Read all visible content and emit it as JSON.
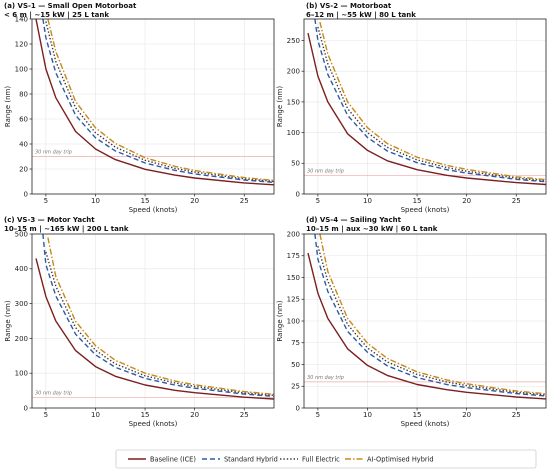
{
  "figure": {
    "legend_placement": "bottom-center",
    "legend_items": [
      {
        "label": "Baseline (ICE)",
        "color": "#7b1f1f",
        "dash": "solid"
      },
      {
        "label": "Standard Hybrid",
        "color": "#2e5aa8",
        "dash": "dashed"
      },
      {
        "label": "Full Electric",
        "color": "#3a3a3a",
        "dash": "dotted"
      },
      {
        "label": "AI-Optimised Hybrid",
        "color": "#c8891a",
        "dash": "dashdot"
      }
    ],
    "reference_color": "#f2a8a8",
    "grid": true
  },
  "chart_data": [
    {
      "type": "line",
      "title_line1": "(a)  VS-1 — Small Open Motorboat",
      "title_line2": "< 6 m  |  ~15 kW  |  25 L tank",
      "xlabel": "Speed (knots)",
      "ylabel": "Range (nm)",
      "xlim": [
        3.6,
        28
      ],
      "ylim": [
        0,
        140
      ],
      "xticks": [
        5,
        10,
        15,
        20,
        25
      ],
      "yticks": [
        0,
        20,
        40,
        60,
        80,
        100,
        120,
        140
      ],
      "reference_line": {
        "y": 30,
        "label": "30 nm day trip"
      },
      "series": [
        {
          "name": "Baseline (ICE)",
          "x": [
            4,
            5,
            6,
            8,
            10,
            12,
            15,
            18,
            20,
            25,
            28
          ],
          "y": [
            140,
            100,
            77,
            50,
            36,
            27.5,
            19.8,
            15.1,
            12.8,
            8.9,
            7.4
          ]
        },
        {
          "name": "Standard Hybrid",
          "x": [
            4.7,
            5,
            6,
            8,
            10,
            12,
            15,
            18,
            20,
            25,
            28
          ],
          "y": [
            140,
            125,
            97,
            63,
            45,
            34.5,
            24.8,
            19,
            16,
            11.2,
            9.3
          ]
        },
        {
          "name": "Full Electric",
          "x": [
            5,
            6,
            8,
            10,
            12,
            15,
            18,
            20,
            25,
            28
          ],
          "y": [
            138,
            106,
            69,
            49,
            37.5,
            27,
            20.6,
            17.5,
            12.2,
            10.1
          ]
        },
        {
          "name": "AI-Optimised Hybrid",
          "x": [
            5.2,
            6,
            8,
            10,
            12,
            15,
            18,
            20,
            25,
            28
          ],
          "y": [
            140,
            114,
            74,
            53,
            40.5,
            29,
            22.2,
            18.8,
            13.1,
            10.9
          ]
        }
      ]
    },
    {
      "type": "line",
      "title_line1": "(b)  VS-2 — Motorboat",
      "title_line2": "6–12 m  |  ~55 kW  |  80 L tank",
      "xlabel": "Speed (knots)",
      "ylabel": "Range (nm)",
      "xlim": [
        3.6,
        28
      ],
      "ylim": [
        0,
        285
      ],
      "xticks": [
        5,
        10,
        15,
        20,
        25
      ],
      "yticks": [
        0,
        50,
        100,
        150,
        200,
        250
      ],
      "reference_line": {
        "y": 30,
        "label": "30 nm day trip"
      },
      "series": [
        {
          "name": "Baseline (ICE)",
          "x": [
            4,
            5,
            6,
            8,
            10,
            12,
            15,
            18,
            20,
            25,
            28
          ],
          "y": [
            262,
            192,
            150,
            98,
            71,
            54,
            39.5,
            30.5,
            26,
            18.5,
            15.5
          ]
        },
        {
          "name": "Standard Hybrid",
          "x": [
            4.7,
            5,
            6,
            8,
            10,
            12,
            15,
            18,
            20,
            25,
            28
          ],
          "y": [
            285,
            250,
            195,
            128,
            92,
            70,
            51,
            39.5,
            34,
            24,
            20
          ]
        },
        {
          "name": "Full Electric",
          "x": [
            5,
            6,
            8,
            10,
            12,
            15,
            18,
            20,
            25,
            28
          ],
          "y": [
            272,
            212,
            139,
            100,
            76,
            55.5,
            43,
            37,
            26,
            21.8
          ]
        },
        {
          "name": "AI-Optimised Hybrid",
          "x": [
            5.2,
            6,
            8,
            10,
            12,
            15,
            18,
            20,
            25,
            28
          ],
          "y": [
            280,
            228,
            150,
            108,
            82,
            60,
            46.5,
            40,
            28,
            23.5
          ]
        }
      ]
    },
    {
      "type": "line",
      "title_line1": "(c)  VS-3 — Motor Yacht",
      "title_line2": "10–15 m  |  ~165 kW  |  200 L tank",
      "xlabel": "Speed (knots)",
      "ylabel": "Range (nm)",
      "xlim": [
        3.6,
        28
      ],
      "ylim": [
        0,
        500
      ],
      "xticks": [
        5,
        10,
        15,
        20,
        25
      ],
      "yticks": [
        0,
        100,
        200,
        300,
        400,
        500
      ],
      "reference_line": {
        "y": 30,
        "label": "30 nm day trip"
      },
      "series": [
        {
          "name": "Baseline (ICE)",
          "x": [
            4,
            5,
            6,
            8,
            10,
            12,
            15,
            18,
            20,
            25,
            28
          ],
          "y": [
            430,
            320,
            250,
            165,
            119,
            91,
            66,
            51,
            44,
            31,
            26
          ]
        },
        {
          "name": "Standard Hybrid",
          "x": [
            4.7,
            5,
            6,
            8,
            10,
            12,
            15,
            18,
            20,
            25,
            28
          ],
          "y": [
            500,
            412,
            322,
            212,
            153,
            117,
            85,
            66,
            57,
            40,
            33.5
          ]
        },
        {
          "name": "Full Electric",
          "x": [
            5,
            6,
            8,
            10,
            12,
            15,
            18,
            20,
            25,
            28
          ],
          "y": [
            448,
            350,
            231,
            166,
            127,
            92.5,
            72,
            62,
            43.5,
            36.5
          ]
        },
        {
          "name": "AI-Optimised Hybrid",
          "x": [
            5.2,
            6,
            8,
            10,
            12,
            15,
            18,
            20,
            25,
            28
          ],
          "y": [
            490,
            378,
            249,
            179,
            137,
            100,
            77.5,
            67,
            47,
            39.5
          ]
        }
      ]
    },
    {
      "type": "line",
      "title_line1": "(d)  VS-4 — Sailing Yacht",
      "title_line2": "10–15 m  |  aux ~30 kW  |  60 L tank",
      "xlabel": "Speed (knots)",
      "ylabel": "Range (nm)",
      "xlim": [
        3.6,
        28
      ],
      "ylim": [
        0,
        200
      ],
      "xticks": [
        5,
        10,
        15,
        20,
        25
      ],
      "yticks": [
        0,
        25,
        50,
        75,
        100,
        125,
        150,
        175,
        200
      ],
      "reference_line": {
        "y": 30,
        "label": "30 nm day trip"
      },
      "series": [
        {
          "name": "Baseline (ICE)",
          "x": [
            4,
            5,
            6,
            8,
            10,
            12,
            15,
            18,
            20,
            25,
            28
          ],
          "y": [
            178,
            132,
            103,
            68,
            49,
            37.5,
            27,
            21,
            18,
            12.6,
            10.5
          ]
        },
        {
          "name": "Standard Hybrid",
          "x": [
            4.7,
            5,
            6,
            8,
            10,
            12,
            15,
            18,
            20,
            25,
            28
          ],
          "y": [
            200,
            171,
            134,
            88,
            64,
            48.5,
            35,
            27,
            23.5,
            16.5,
            13.8
          ]
        },
        {
          "name": "Full Electric",
          "x": [
            5,
            6,
            8,
            10,
            12,
            15,
            18,
            20,
            25,
            28
          ],
          "y": [
            186,
            146,
            96,
            69,
            53,
            38.5,
            30,
            25.8,
            18,
            15.1
          ]
        },
        {
          "name": "AI-Optimised Hybrid",
          "x": [
            5.2,
            6,
            8,
            10,
            12,
            15,
            18,
            20,
            25,
            28
          ],
          "y": [
            200,
            157,
            103,
            74.5,
            57,
            41.5,
            32.3,
            27.8,
            19.5,
            16.3
          ]
        }
      ]
    }
  ]
}
